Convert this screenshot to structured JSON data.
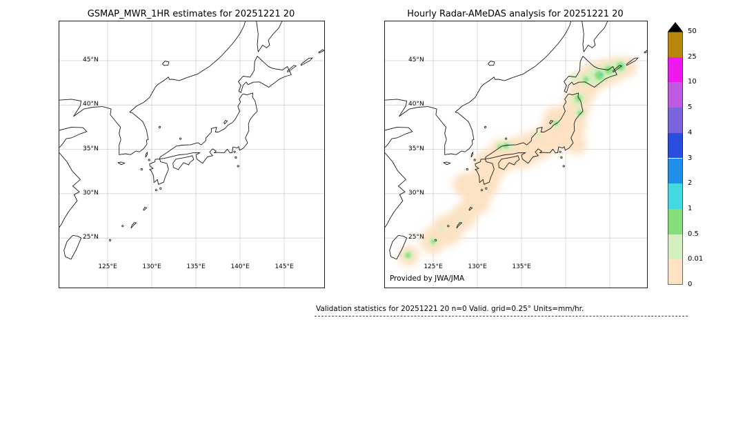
{
  "titles": {
    "left": "GSMAP_MWR_1HR estimates for 20251221 20",
    "right": "Hourly Radar-AMeDAS analysis for 20251221 20"
  },
  "left_panel": {
    "lat_labels": [
      "45°N",
      "40°N",
      "35°N",
      "30°N",
      "25°N"
    ],
    "lon_labels": [
      "125°E",
      "130°E",
      "135°E",
      "140°E",
      "145°E"
    ]
  },
  "right_panel": {
    "lat_labels": [
      "45°N",
      "40°N",
      "35°N",
      "30°N",
      "25°N"
    ],
    "lon_labels": [
      "125°E",
      "130°E",
      "135°E"
    ],
    "credit": "Provided by JWA/JMA"
  },
  "colorbar": {
    "tick_labels": [
      "50",
      "25",
      "10",
      "5",
      "4",
      "3",
      "2",
      "1",
      "0.5",
      "0.01",
      "0"
    ],
    "segment_colors_top_to_bottom": [
      "#b8860b",
      "#ef18ef",
      "#bf5be0",
      "#7a63dd",
      "#2a4fe0",
      "#1f8fea",
      "#44d9e0",
      "#85de7c",
      "#d4efbf",
      "#fde2c3"
    ],
    "overflow_color": "#000000"
  },
  "footer": {
    "stats_text": "Validation statistics for 20251221 20  n=0 Valid. grid=0.25° Units=mm/hr."
  },
  "chart_data": {
    "type": "heatmap",
    "units": "mm/hr",
    "valid_time": "20251221 20",
    "n_valid_points": 0,
    "grid_resolution_deg": 0.25,
    "colorbar_levels_mm_per_hr": [
      0,
      0.01,
      0.5,
      1,
      2,
      3,
      4,
      5,
      10,
      25,
      50
    ],
    "lat_ticks_deg_n": [
      45,
      40,
      35,
      30,
      25
    ],
    "lon_ticks_deg_e": [
      125,
      130,
      135,
      140,
      145
    ],
    "map_bounds": {
      "lon_min": 119.5,
      "lon_max": 149.5,
      "lat_min": 19.4,
      "lat_max": 49.4
    },
    "panels": [
      {
        "title": "GSMAP_MWR_1HR estimates for 20251221 20",
        "precipitation": "none plotted (blank base map)"
      },
      {
        "title": "Hourly Radar-AMeDAS analysis for 20251221 20",
        "precipitation_note": "light precipitation band (trace to ~2 mm/hr) stretching from the Ryukyus northeast along the Japanese archipelago to Hokkaido; strongest cells over the San-in coast, northern Tohoku, and southeastern Hokkaido",
        "precipitation_blobs": [
          {
            "lon": 122.2,
            "lat": 23.0,
            "r_deg": 1.2,
            "bin": "0"
          },
          {
            "lon": 125.0,
            "lat": 24.7,
            "r_deg": 1.5,
            "bin": "0"
          },
          {
            "lon": 126.6,
            "lat": 25.9,
            "r_deg": 1.8,
            "bin": "0"
          },
          {
            "lon": 128.4,
            "lat": 27.4,
            "r_deg": 1.5,
            "bin": "0"
          },
          {
            "lon": 129.9,
            "lat": 29.2,
            "r_deg": 1.6,
            "bin": "0"
          },
          {
            "lon": 128.6,
            "lat": 31.0,
            "r_deg": 1.4,
            "bin": "0"
          },
          {
            "lon": 130.7,
            "lat": 31.2,
            "r_deg": 1.8,
            "bin": "0"
          },
          {
            "lon": 131.4,
            "lat": 33.1,
            "r_deg": 1.9,
            "bin": "0"
          },
          {
            "lon": 133.0,
            "lat": 34.3,
            "r_deg": 1.9,
            "bin": "0"
          },
          {
            "lon": 135.0,
            "lat": 34.7,
            "r_deg": 1.9,
            "bin": "0"
          },
          {
            "lon": 136.6,
            "lat": 35.4,
            "r_deg": 1.8,
            "bin": "0"
          },
          {
            "lon": 138.2,
            "lat": 36.3,
            "r_deg": 1.8,
            "bin": "0"
          },
          {
            "lon": 139.6,
            "lat": 36.5,
            "r_deg": 1.6,
            "bin": "0"
          },
          {
            "lon": 141.2,
            "lat": 35.6,
            "r_deg": 1.2,
            "bin": "0"
          },
          {
            "lon": 140.7,
            "lat": 37.9,
            "r_deg": 1.7,
            "bin": "0"
          },
          {
            "lon": 138.8,
            "lat": 38.4,
            "r_deg": 1.4,
            "bin": "0"
          },
          {
            "lon": 141.2,
            "lat": 39.9,
            "r_deg": 1.6,
            "bin": "0"
          },
          {
            "lon": 141.9,
            "lat": 41.6,
            "r_deg": 1.6,
            "bin": "0"
          },
          {
            "lon": 142.9,
            "lat": 43.0,
            "r_deg": 1.7,
            "bin": "0"
          },
          {
            "lon": 144.4,
            "lat": 43.6,
            "r_deg": 1.6,
            "bin": "0"
          },
          {
            "lon": 145.9,
            "lat": 44.1,
            "r_deg": 1.4,
            "bin": "0"
          },
          {
            "lon": 147.0,
            "lat": 44.3,
            "r_deg": 1.1,
            "bin": "0"
          },
          {
            "lon": 122.2,
            "lat": 23.1,
            "r_deg": 0.55,
            "bin": "0.01"
          },
          {
            "lon": 125.0,
            "lat": 24.65,
            "r_deg": 0.5,
            "bin": "0.01"
          },
          {
            "lon": 126.0,
            "lat": 26.0,
            "r_deg": 0.3,
            "bin": "0.01"
          },
          {
            "lon": 128.0,
            "lat": 26.9,
            "r_deg": 0.3,
            "bin": "0.01"
          },
          {
            "lon": 132.7,
            "lat": 35.3,
            "r_deg": 0.55,
            "bin": "0.01"
          },
          {
            "lon": 133.6,
            "lat": 35.4,
            "r_deg": 0.5,
            "bin": "0.01"
          },
          {
            "lon": 136.9,
            "lat": 36.7,
            "r_deg": 0.35,
            "bin": "0.01"
          },
          {
            "lon": 138.9,
            "lat": 37.9,
            "r_deg": 0.5,
            "bin": "0.01"
          },
          {
            "lon": 141.6,
            "lat": 39.1,
            "r_deg": 0.6,
            "bin": "0.01"
          },
          {
            "lon": 141.4,
            "lat": 40.7,
            "r_deg": 0.8,
            "bin": "0.01"
          },
          {
            "lon": 140.9,
            "lat": 43.1,
            "r_deg": 0.5,
            "bin": "0.01"
          },
          {
            "lon": 142.4,
            "lat": 42.9,
            "r_deg": 0.8,
            "bin": "0.01"
          },
          {
            "lon": 143.6,
            "lat": 43.3,
            "r_deg": 1.1,
            "bin": "0.01"
          },
          {
            "lon": 144.9,
            "lat": 43.9,
            "r_deg": 0.9,
            "bin": "0.01"
          },
          {
            "lon": 146.1,
            "lat": 44.3,
            "r_deg": 0.8,
            "bin": "0.01"
          },
          {
            "lon": 122.15,
            "lat": 23.05,
            "r_deg": 0.3,
            "bin": "0.5"
          },
          {
            "lon": 125.0,
            "lat": 24.6,
            "r_deg": 0.25,
            "bin": "0.5"
          },
          {
            "lon": 132.5,
            "lat": 35.3,
            "r_deg": 0.22,
            "bin": "0.5"
          },
          {
            "lon": 133.2,
            "lat": 35.42,
            "r_deg": 0.3,
            "bin": "0.5"
          },
          {
            "lon": 138.9,
            "lat": 37.95,
            "r_deg": 0.22,
            "bin": "0.5"
          },
          {
            "lon": 141.6,
            "lat": 39.1,
            "r_deg": 0.25,
            "bin": "0.5"
          },
          {
            "lon": 141.45,
            "lat": 40.75,
            "r_deg": 0.35,
            "bin": "0.5"
          },
          {
            "lon": 142.3,
            "lat": 42.9,
            "r_deg": 0.3,
            "bin": "0.5"
          },
          {
            "lon": 143.8,
            "lat": 43.35,
            "r_deg": 0.5,
            "bin": "0.5"
          },
          {
            "lon": 144.9,
            "lat": 43.95,
            "r_deg": 0.45,
            "bin": "0.5"
          },
          {
            "lon": 146.2,
            "lat": 44.35,
            "r_deg": 0.45,
            "bin": "0.5"
          },
          {
            "lon": 133.35,
            "lat": 35.44,
            "r_deg": 0.12,
            "bin": "1"
          },
          {
            "lon": 144.0,
            "lat": 43.4,
            "r_deg": 0.15,
            "bin": "1"
          },
          {
            "lon": 146.3,
            "lat": 44.4,
            "r_deg": 0.12,
            "bin": "1"
          }
        ]
      }
    ]
  }
}
